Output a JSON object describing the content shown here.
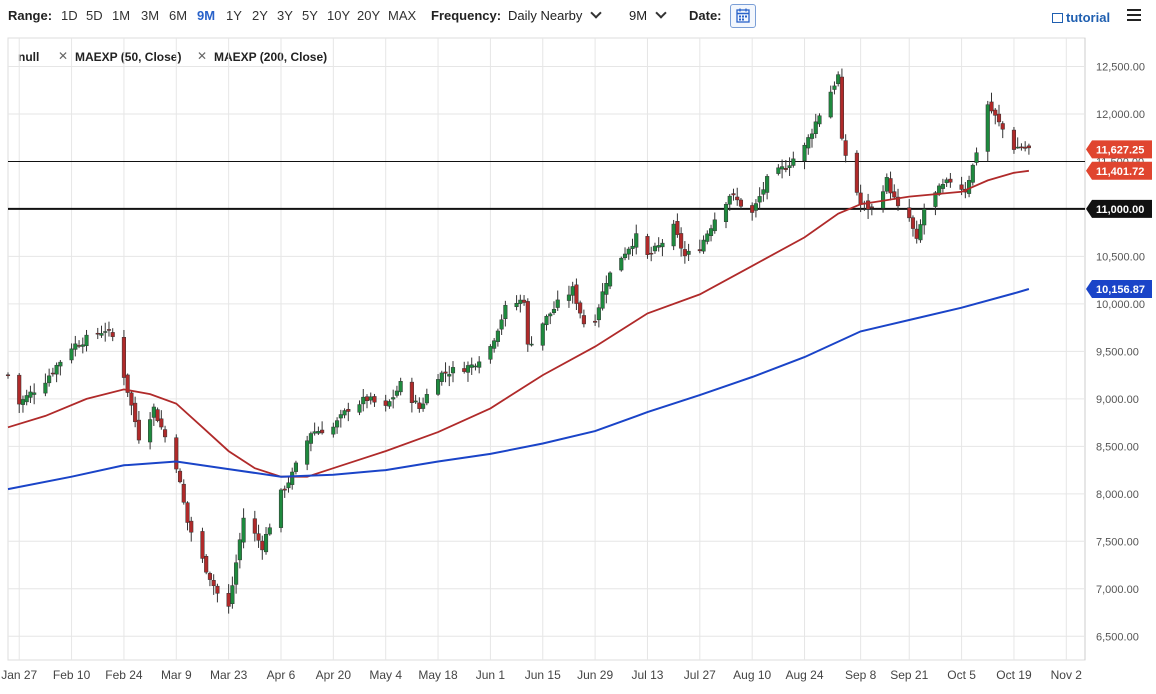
{
  "toolbar": {
    "range_label": "Range:",
    "ranges": [
      "1D",
      "5D",
      "1M",
      "3M",
      "6M",
      "9M",
      "1Y",
      "2Y",
      "3Y",
      "5Y",
      "10Y",
      "20Y",
      "MAX"
    ],
    "active_range": "9M",
    "frequency_label": "Frequency:",
    "frequency_value": "Daily Nearby",
    "period_value": "9M",
    "date_label": "Date:",
    "tutorial_label": "tutorial"
  },
  "legend": {
    "items": [
      "null",
      "MAEXP (50, Close)",
      "MAEXP (200, Close)"
    ]
  },
  "colors": {
    "up": "#1e8a3e",
    "down": "#b02a2a",
    "ma50": "#b02a2a",
    "ma200": "#1a44c8",
    "grid": "#e6e6e6",
    "badge_red": "#e0452f",
    "badge_blue": "#1a44c8",
    "badge_black": "#111111"
  },
  "chart_data": {
    "type": "candlestick",
    "ylim": [
      6250,
      12800
    ],
    "yticks": [
      "6,500.00",
      "7,000.00",
      "7,500.00",
      "8,000.00",
      "8,500.00",
      "9,000.00",
      "9,500.00",
      "10,000.00",
      "10,500.00",
      "11,000.00",
      "11,500.00",
      "12,000.00",
      "12,500.00"
    ],
    "ytick_values": [
      6500,
      7000,
      7500,
      8000,
      8500,
      9000,
      9500,
      10000,
      10500,
      11000,
      11500,
      12000,
      12500
    ],
    "xlim": [
      "2020-01-24",
      "2020-11-07"
    ],
    "xticks": [
      {
        "label": "Jan 27",
        "date": "2020-01-27"
      },
      {
        "label": "Feb 10",
        "date": "2020-02-10"
      },
      {
        "label": "Feb 24",
        "date": "2020-02-24"
      },
      {
        "label": "Mar 9",
        "date": "2020-03-09"
      },
      {
        "label": "Mar 23",
        "date": "2020-03-23"
      },
      {
        "label": "Apr 6",
        "date": "2020-04-06"
      },
      {
        "label": "Apr 20",
        "date": "2020-04-20"
      },
      {
        "label": "May 4",
        "date": "2020-05-04"
      },
      {
        "label": "May 18",
        "date": "2020-05-18"
      },
      {
        "label": "Jun 1",
        "date": "2020-06-01"
      },
      {
        "label": "Jun 15",
        "date": "2020-06-15"
      },
      {
        "label": "Jun 29",
        "date": "2020-06-29"
      },
      {
        "label": "Jul 13",
        "date": "2020-07-13"
      },
      {
        "label": "Jul 27",
        "date": "2020-07-27"
      },
      {
        "label": "Aug 10",
        "date": "2020-08-10"
      },
      {
        "label": "Aug 24",
        "date": "2020-08-24"
      },
      {
        "label": "Sep 8",
        "date": "2020-09-08"
      },
      {
        "label": "Sep 21",
        "date": "2020-09-21"
      },
      {
        "label": "Oct 5",
        "date": "2020-10-05"
      },
      {
        "label": "Oct 19",
        "date": "2020-10-19"
      },
      {
        "label": "Nov 2",
        "date": "2020-11-02"
      }
    ],
    "hlines": [
      {
        "value": 11500,
        "width": 1
      },
      {
        "value": 11000,
        "width": 2
      }
    ],
    "price_badges": [
      {
        "label": "11,627.25",
        "value": 11627.25,
        "color": "badge_red"
      },
      {
        "label": "11,401.72",
        "value": 11401.72,
        "color": "badge_red"
      },
      {
        "label": "11,000.00",
        "value": 11000,
        "color": "badge_black"
      },
      {
        "label": "10,156.87",
        "value": 10156.87,
        "color": "badge_blue"
      }
    ],
    "anchors": [
      [
        "2020-01-24",
        9250
      ],
      [
        "2020-01-27",
        8950
      ],
      [
        "2020-02-03",
        9200
      ],
      [
        "2020-02-10",
        9550
      ],
      [
        "2020-02-19",
        9730
      ],
      [
        "2020-02-21",
        9650
      ],
      [
        "2020-02-24",
        9250
      ],
      [
        "2020-02-28",
        8600
      ],
      [
        "2020-03-03",
        8900
      ],
      [
        "2020-03-09",
        8300
      ],
      [
        "2020-03-12",
        7700
      ],
      [
        "2020-03-16",
        7300
      ],
      [
        "2020-03-20",
        6950
      ],
      [
        "2020-03-23",
        6800
      ],
      [
        "2020-03-27",
        7750
      ],
      [
        "2020-04-01",
        7450
      ],
      [
        "2020-04-06",
        8000
      ],
      [
        "2020-04-09",
        8200
      ],
      [
        "2020-04-14",
        8650
      ],
      [
        "2020-04-20",
        8700
      ],
      [
        "2020-04-24",
        8900
      ],
      [
        "2020-04-29",
        9000
      ],
      [
        "2020-05-04",
        8900
      ],
      [
        "2020-05-08",
        9150
      ],
      [
        "2020-05-13",
        8900
      ],
      [
        "2020-05-18",
        9250
      ],
      [
        "2020-05-22",
        9300
      ],
      [
        "2020-05-27",
        9350
      ],
      [
        "2020-06-01",
        9550
      ],
      [
        "2020-06-05",
        9950
      ],
      [
        "2020-06-10",
        10050
      ],
      [
        "2020-06-11",
        9550
      ],
      [
        "2020-06-15",
        9800
      ],
      [
        "2020-06-19",
        10000
      ],
      [
        "2020-06-23",
        10150
      ],
      [
        "2020-06-26",
        9800
      ],
      [
        "2020-06-29",
        9850
      ],
      [
        "2020-07-02",
        10250
      ],
      [
        "2020-07-06",
        10500
      ],
      [
        "2020-07-10",
        10700
      ],
      [
        "2020-07-13",
        10500
      ],
      [
        "2020-07-16",
        10600
      ],
      [
        "2020-07-20",
        10800
      ],
      [
        "2020-07-23",
        10500
      ],
      [
        "2020-07-27",
        10600
      ],
      [
        "2020-07-31",
        10900
      ],
      [
        "2020-08-04",
        11150
      ],
      [
        "2020-08-07",
        11050
      ],
      [
        "2020-08-10",
        10950
      ],
      [
        "2020-08-14",
        11300
      ],
      [
        "2020-08-19",
        11450
      ],
      [
        "2020-08-24",
        11650
      ],
      [
        "2020-08-28",
        12000
      ],
      [
        "2020-09-02",
        12400
      ],
      [
        "2020-09-03",
        11700
      ],
      [
        "2020-09-08",
        11050
      ],
      [
        "2020-09-11",
        11000
      ],
      [
        "2020-09-15",
        11300
      ],
      [
        "2020-09-18",
        11000
      ],
      [
        "2020-09-21",
        10900
      ],
      [
        "2020-09-23",
        10650
      ],
      [
        "2020-09-25",
        11000
      ],
      [
        "2020-09-29",
        11200
      ],
      [
        "2020-10-02",
        11300
      ],
      [
        "2020-10-06",
        11200
      ],
      [
        "2020-10-08",
        11450
      ],
      [
        "2020-10-12",
        12100
      ],
      [
        "2020-10-15",
        11900
      ],
      [
        "2020-10-19",
        11650
      ],
      [
        "2020-10-21",
        11650
      ],
      [
        "2020-10-23",
        11630
      ]
    ],
    "ma50_points": [
      [
        "2020-01-24",
        8700
      ],
      [
        "2020-02-03",
        8820
      ],
      [
        "2020-02-14",
        9000
      ],
      [
        "2020-02-24",
        9100
      ],
      [
        "2020-03-02",
        9050
      ],
      [
        "2020-03-09",
        8950
      ],
      [
        "2020-03-16",
        8700
      ],
      [
        "2020-03-23",
        8450
      ],
      [
        "2020-03-30",
        8270
      ],
      [
        "2020-04-06",
        8180
      ],
      [
        "2020-04-13",
        8180
      ],
      [
        "2020-04-20",
        8270
      ],
      [
        "2020-05-04",
        8450
      ],
      [
        "2020-05-18",
        8650
      ],
      [
        "2020-06-01",
        8900
      ],
      [
        "2020-06-15",
        9250
      ],
      [
        "2020-06-29",
        9550
      ],
      [
        "2020-07-13",
        9900
      ],
      [
        "2020-07-27",
        10100
      ],
      [
        "2020-08-10",
        10400
      ],
      [
        "2020-08-24",
        10700
      ],
      [
        "2020-09-02",
        10950
      ],
      [
        "2020-09-08",
        11050
      ],
      [
        "2020-09-21",
        11130
      ],
      [
        "2020-10-05",
        11180
      ],
      [
        "2020-10-12",
        11300
      ],
      [
        "2020-10-19",
        11380
      ],
      [
        "2020-10-23",
        11402
      ]
    ],
    "ma200_points": [
      [
        "2020-01-24",
        8050
      ],
      [
        "2020-02-10",
        8180
      ],
      [
        "2020-02-24",
        8300
      ],
      [
        "2020-03-09",
        8340
      ],
      [
        "2020-03-23",
        8260
      ],
      [
        "2020-04-06",
        8180
      ],
      [
        "2020-04-20",
        8200
      ],
      [
        "2020-05-04",
        8250
      ],
      [
        "2020-05-18",
        8340
      ],
      [
        "2020-06-01",
        8420
      ],
      [
        "2020-06-15",
        8530
      ],
      [
        "2020-06-29",
        8660
      ],
      [
        "2020-07-13",
        8860
      ],
      [
        "2020-07-27",
        9040
      ],
      [
        "2020-08-10",
        9230
      ],
      [
        "2020-08-24",
        9440
      ],
      [
        "2020-09-08",
        9710
      ],
      [
        "2020-09-21",
        9830
      ],
      [
        "2020-10-05",
        9960
      ],
      [
        "2020-10-19",
        10110
      ],
      [
        "2020-10-23",
        10157
      ]
    ]
  }
}
